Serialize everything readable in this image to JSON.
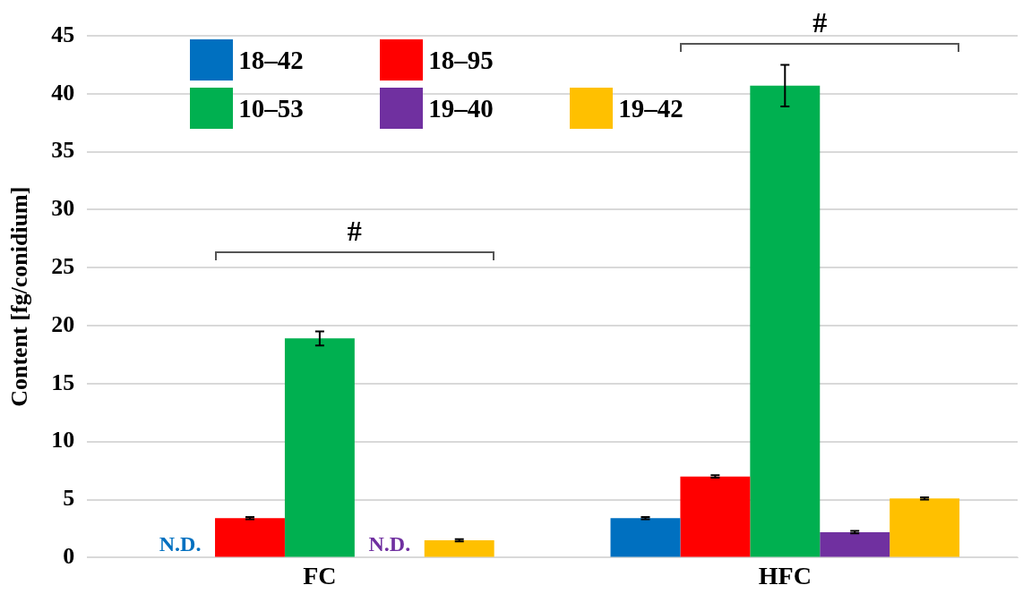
{
  "chart_data": {
    "type": "bar",
    "ylabel": "Content [fg/conidium]",
    "categories": [
      "FC",
      "HFC"
    ],
    "series": [
      {
        "name": "18–42",
        "color": "#0070c0",
        "values": [
          null,
          3.4
        ],
        "errors": [
          null,
          0.1
        ]
      },
      {
        "name": "18–95",
        "color": "#ff0000",
        "values": [
          3.4,
          7.0
        ],
        "errors": [
          0.1,
          0.1
        ]
      },
      {
        "name": "10–53",
        "color": "#00b050",
        "values": [
          18.9,
          40.7
        ],
        "errors": [
          0.6,
          1.8
        ]
      },
      {
        "name": "19–40",
        "color": "#7030a0",
        "values": [
          null,
          2.2
        ],
        "errors": [
          null,
          0.1
        ]
      },
      {
        "name": "19–42",
        "color": "#ffc000",
        "values": [
          1.5,
          5.1
        ],
        "errors": [
          0.1,
          0.1
        ]
      }
    ],
    "ylim": [
      0,
      45
    ],
    "yticks": [
      0,
      5,
      10,
      15,
      20,
      25,
      30,
      35,
      40,
      45
    ],
    "grid": "y",
    "legend": "top left",
    "annotations": [
      "N.D.",
      "N.D.",
      "#",
      "#"
    ]
  }
}
